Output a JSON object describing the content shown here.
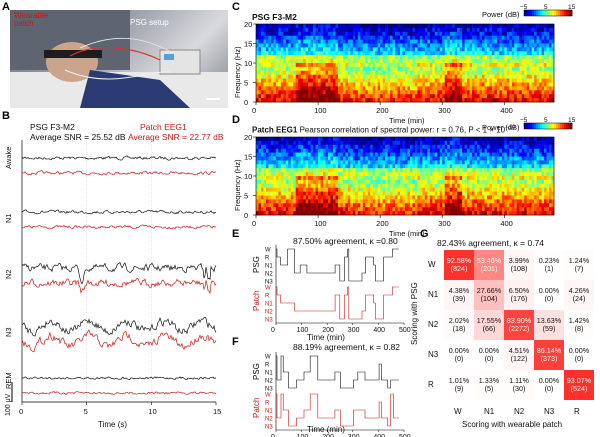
{
  "panels": {
    "A": "A",
    "B": "B",
    "C": "C",
    "D": "D",
    "E": "E",
    "F": "F",
    "G": "G"
  },
  "photo": {
    "label_wearable_line1": "Wearable",
    "label_wearable_line2": "patch",
    "label_psg": "PSG setup"
  },
  "panelB": {
    "psg_title": "PSG F3-M2",
    "psg_snr": "Average SNR = 25.52 dB",
    "patch_title": "Patch EEG1",
    "patch_snr": "Average SNR = 22.77 dB",
    "stages": [
      "Awake",
      "N1",
      "N2",
      "N3",
      "REM"
    ],
    "x_ticks": [
      "0",
      "5",
      "10",
      "15"
    ],
    "x_label": "Time (s)",
    "scale_label": "100 μV"
  },
  "panelC": {
    "title": "PSG F3-M2",
    "colorbar_label": "Power (dB)",
    "colorbar_ticks": [
      "−5",
      "5",
      "15"
    ],
    "y_label": "Frequency (Hz)",
    "y_ticks": [
      "0",
      "5",
      "10",
      "15",
      "20"
    ],
    "x_ticks": [
      "0",
      "100",
      "200",
      "300",
      "400"
    ],
    "x_label": "Time (min)"
  },
  "panelD": {
    "title": "Patch EEG1",
    "subtitle": "Pearson correlation of spectral power: r = 0.76, P < 1 × 10",
    "subtitle_exp": "−10",
    "colorbar_label": "Power (dB)",
    "colorbar_ticks": [
      "−5",
      "5",
      "15"
    ],
    "y_label": "Frequency (Hz)",
    "y_ticks": [
      "0",
      "5",
      "10",
      "15",
      "20"
    ],
    "x_ticks": [
      "0",
      "100",
      "200",
      "300",
      "400"
    ],
    "x_label": "Time (min)"
  },
  "panelE": {
    "title": "87.50% agreement, κ =0.80",
    "psg_label": "PSG",
    "patch_label": "Patch",
    "stage_ticks": [
      "W",
      "R",
      "N1",
      "N2",
      "N3"
    ],
    "x_ticks": [
      "0",
      "100",
      "200",
      "300",
      "400",
      "500"
    ],
    "x_label": "Time (min)"
  },
  "panelF": {
    "title": "88.19% agreement, κ = 0.82",
    "psg_label": "PSG",
    "patch_label": "Patch",
    "stage_ticks": [
      "W",
      "R",
      "N1",
      "N2",
      "N3"
    ],
    "x_ticks": [
      "0",
      "100",
      "200",
      "300",
      "400",
      "500"
    ],
    "x_label": "Time (min)"
  },
  "panelG": {
    "title": "82.43% agreement, κ = 0.74",
    "y_label": "Scoring with PSG",
    "x_label": "Scoring with wearable patch",
    "classes": [
      "W",
      "N1",
      "N2",
      "N3",
      "R"
    ],
    "cells": [
      [
        {
          "pct": "92.58%",
          "n": "(824)"
        },
        {
          "pct": "53.46%",
          "n": "(201)"
        },
        {
          "pct": "3.99%",
          "n": "(108)"
        },
        {
          "pct": "0.23%",
          "n": "(1)"
        },
        {
          "pct": "1.24%",
          "n": "(7)"
        }
      ],
      [
        {
          "pct": "4.38%",
          "n": "(39)"
        },
        {
          "pct": "27.66%",
          "n": "(104)"
        },
        {
          "pct": "6.50%",
          "n": "(176)"
        },
        {
          "pct": "0.00%",
          "n": "(0)"
        },
        {
          "pct": "4.26%",
          "n": "(24)"
        }
      ],
      [
        {
          "pct": "2.02%",
          "n": "(18)"
        },
        {
          "pct": "17.55%",
          "n": "(66)"
        },
        {
          "pct": "83.90%",
          "n": "(2272)"
        },
        {
          "pct": "13.63%",
          "n": "(59)"
        },
        {
          "pct": "1.42%",
          "n": "(8)"
        }
      ],
      [
        {
          "pct": "0.00%",
          "n": "(0)"
        },
        {
          "pct": "0.00%",
          "n": "(0)"
        },
        {
          "pct": "4.51%",
          "n": "(122)"
        },
        {
          "pct": "86.14%",
          "n": "(373)"
        },
        {
          "pct": "0.00%",
          "n": "(0)"
        }
      ],
      [
        {
          "pct": "1.01%",
          "n": "(9)"
        },
        {
          "pct": "1.33%",
          "n": "(5)"
        },
        {
          "pct": "1.11%",
          "n": "(30)"
        },
        {
          "pct": "0.00%",
          "n": "(0)"
        },
        {
          "pct": "93.07%",
          "n": "(524)"
        }
      ]
    ]
  },
  "colors": {
    "psg": "#111111",
    "patch": "#c41a1a",
    "heat_high": "#e3201b",
    "heat_low": "#ffffff"
  }
}
